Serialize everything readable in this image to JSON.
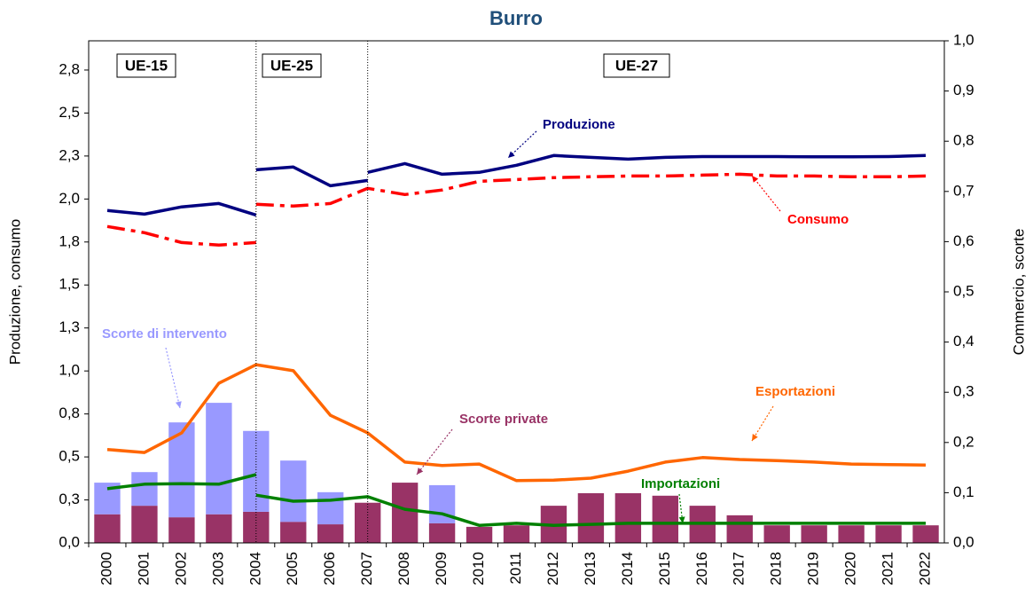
{
  "chart_data": {
    "type": "combo",
    "title": "Burro",
    "y_label": "Produzione, consumo",
    "y2_label": "Commercio, scorte",
    "periods": [
      "UE-15",
      "UE-25",
      "UE-27"
    ],
    "categories": [
      "2000",
      "2001",
      "2002",
      "2003",
      "2004",
      "2005",
      "2006",
      "2007",
      "2008",
      "2009",
      "2010",
      "2011",
      "2012",
      "2013",
      "2014",
      "2015",
      "2016",
      "2017",
      "2018",
      "2019",
      "2020",
      "2021",
      "2022"
    ],
    "ylim": [
      0,
      2.92
    ],
    "yticks": [
      {
        "value": 0,
        "label": "0,0"
      },
      {
        "value": 0.25,
        "label": "0,3"
      },
      {
        "value": 0.5,
        "label": "0,5"
      },
      {
        "value": 0.75,
        "label": "0,8"
      },
      {
        "value": 1,
        "label": "1,0"
      },
      {
        "value": 1.25,
        "label": "1,3"
      },
      {
        "value": 1.5,
        "label": "1,5"
      },
      {
        "value": 1.75,
        "label": "1,8"
      },
      {
        "value": 2,
        "label": "2,0"
      },
      {
        "value": 2.25,
        "label": "2,3"
      },
      {
        "value": 2.5,
        "label": "2,5"
      },
      {
        "value": 2.75,
        "label": "2,8"
      }
    ],
    "y2lim": [
      0,
      1
    ],
    "y2ticks": [
      {
        "value": 0,
        "label": "0,0"
      },
      {
        "value": 0.1,
        "label": "0,1"
      },
      {
        "value": 0.2,
        "label": "0,2"
      },
      {
        "value": 0.3,
        "label": "0,3"
      },
      {
        "value": 0.4,
        "label": "0,4"
      },
      {
        "value": 0.5,
        "label": "0,5"
      },
      {
        "value": 0.6,
        "label": "0,6"
      },
      {
        "value": 0.7,
        "label": "0,7"
      },
      {
        "value": 0.8,
        "label": "0,8"
      },
      {
        "value": 0.9,
        "label": "0,9"
      },
      {
        "value": 1,
        "label": "1,0"
      }
    ],
    "series": [
      {
        "name": "Scorte private",
        "type": "bar",
        "axis": "y2",
        "color": "#993366",
        "values": [
          0.057,
          0.074,
          0.051,
          0.057,
          0.062,
          0.042,
          0.037,
          0.08,
          0.12,
          0.039,
          0.032,
          0.035,
          0.074,
          0.099,
          0.099,
          0.094,
          0.074,
          0.055,
          0.035,
          0.035,
          0.035,
          0.035,
          0.035
        ]
      },
      {
        "name": "Scorte di intervento",
        "type": "bar",
        "axis": "y2",
        "color": "#9999ff",
        "values": [
          0.063,
          0.067,
          0.189,
          0.222,
          0.161,
          0.122,
          0.064,
          null,
          null,
          0.076,
          null,
          null,
          null,
          null,
          null,
          null,
          null,
          null,
          null,
          null,
          null,
          null,
          null
        ]
      },
      {
        "name": "Produzione",
        "type": "line",
        "axis": "y",
        "color": "#000080",
        "values": [
          null,
          null,
          null,
          null,
          null,
          null,
          null,
          2.155,
          2.206,
          2.144,
          2.155,
          2.196,
          2.253,
          2.242,
          2.232,
          2.242,
          2.247,
          2.247,
          2.247,
          2.245,
          2.245,
          2.247,
          2.253
        ]
      },
      {
        "type": "line",
        "axis": "y",
        "color": "#000080",
        "values": [
          1.933,
          1.912,
          1.954,
          1.974,
          1.907,
          null,
          null,
          null,
          null,
          null,
          null,
          null,
          null,
          null,
          null,
          null,
          null,
          null,
          null,
          null,
          null,
          null,
          null
        ]
      },
      {
        "type": "line",
        "axis": "y",
        "color": "#000080",
        "values": [
          null,
          null,
          null,
          null,
          2.17,
          2.186,
          2.077,
          2.108,
          null,
          null,
          null,
          null,
          null,
          null,
          null,
          null,
          null,
          null,
          null,
          null,
          null,
          null,
          null
        ]
      },
      {
        "name": "Consumo",
        "type": "line",
        "axis": "y",
        "color": "#ff0000",
        "dash": "dashdot",
        "values": [
          null,
          null,
          null,
          null,
          1.969,
          1.959,
          1.974,
          2.062,
          2.026,
          2.052,
          2.103,
          2.113,
          2.124,
          2.129,
          2.134,
          2.134,
          2.139,
          2.144,
          2.134,
          2.134,
          2.129,
          2.129,
          2.134
        ]
      },
      {
        "type": "line",
        "axis": "y",
        "color": "#ff0000",
        "dash": "dashdot",
        "values": [
          1.84,
          1.804,
          1.747,
          1.732,
          1.747,
          null,
          null,
          null,
          null,
          null,
          null,
          null,
          null,
          null,
          null,
          null,
          null,
          null,
          null,
          null,
          null,
          null,
          null
        ]
      },
      {
        "name": "Esportazioni",
        "type": "line",
        "axis": "y2",
        "color": "#ff6600",
        "values": [
          0.186,
          0.18,
          0.219,
          0.318,
          0.355,
          0.343,
          0.254,
          0.219,
          0.161,
          0.154,
          0.157,
          0.124,
          0.125,
          0.129,
          0.143,
          0.161,
          0.17,
          0.166,
          0.164,
          0.161,
          0.157,
          0.156,
          0.155
        ]
      },
      {
        "name": "Importazioni",
        "type": "line",
        "axis": "y2",
        "color": "#008000",
        "values": [
          null,
          null,
          null,
          null,
          0.095,
          0.083,
          0.085,
          0.092,
          0.067,
          0.058,
          0.035,
          0.039,
          0.035,
          0.037,
          0.039,
          0.039,
          0.039,
          0.039,
          0.039,
          0.039,
          0.039,
          0.039,
          0.039
        ]
      },
      {
        "type": "line",
        "axis": "y2",
        "color": "#008000",
        "values": [
          0.108,
          0.117,
          0.118,
          0.117,
          0.136,
          null,
          null,
          null,
          null,
          null,
          null,
          null,
          null,
          null,
          null,
          null,
          null,
          null,
          null,
          null,
          null,
          null,
          null
        ]
      }
    ]
  }
}
